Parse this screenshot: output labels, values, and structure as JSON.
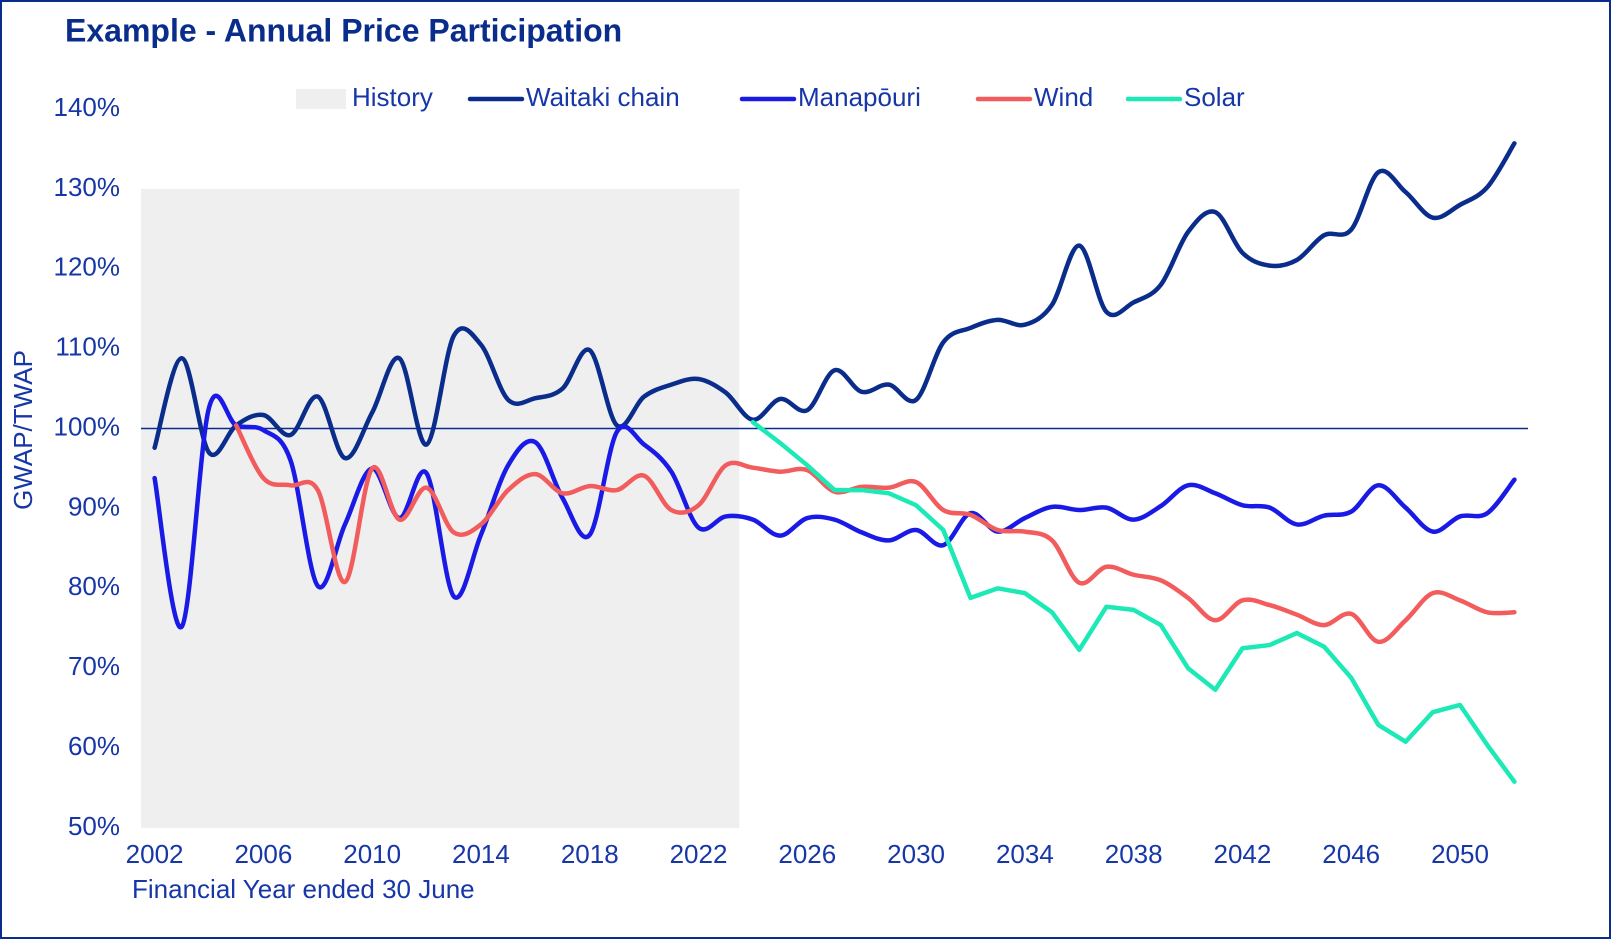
{
  "chart_data": {
    "type": "line",
    "title": "Example - Annual Price Participation",
    "x_label": "Financial Year ended 30 June",
    "y_label": "GWAP/TWAP",
    "history": {
      "name": "History",
      "color": "#efeff0",
      "x": [
        2001.5,
        2023.5
      ],
      "y": [
        50,
        130
      ]
    },
    "reference_line": {
      "value": 100,
      "color": "#0a2d8c"
    },
    "x": [
      2002,
      2003,
      2004,
      2005,
      2006,
      2007,
      2008,
      2009,
      2010,
      2011,
      2012,
      2013,
      2014,
      2015,
      2016,
      2017,
      2018,
      2019,
      2020,
      2021,
      2022,
      2023,
      2024,
      2025,
      2026,
      2027,
      2028,
      2029,
      2030,
      2031,
      2032,
      2033,
      2034,
      2035,
      2036,
      2037,
      2038,
      2039,
      2040,
      2041,
      2042,
      2043,
      2044,
      2045,
      2046,
      2047,
      2048,
      2049,
      2050,
      2051,
      2052
    ],
    "series": [
      {
        "name": "Waitaki chain",
        "color": "#0a2d8c",
        "smooth": true,
        "values": [
          97.6,
          108.8,
          97,
          100.4,
          101.7,
          99.2,
          104,
          96.3,
          102,
          108.8,
          98,
          111.6,
          110.5,
          103.6,
          103.8,
          105,
          109.8,
          100.4,
          104,
          105.5,
          106.2,
          104.5,
          101.1,
          103.7,
          102.3,
          107.3,
          104.6,
          105.5,
          103.6,
          110.8,
          112.6,
          113.6,
          113,
          115.5,
          122.9,
          114.6,
          115.8,
          118,
          124.6,
          127.1,
          122,
          120.4,
          121.1,
          124.2,
          124.9,
          132.1,
          129.6,
          126.4,
          128,
          130.2,
          135.7
        ]
      },
      {
        "name": "Manapōuri",
        "color": "#1a1ae6",
        "smooth": true,
        "values": [
          93.8,
          75.2,
          102.6,
          100.4,
          99.8,
          96,
          80.3,
          88,
          95,
          88.8,
          94.4,
          79,
          86.7,
          95.4,
          98.3,
          91.3,
          86.7,
          99.6,
          98,
          94.6,
          87.6,
          89,
          88.6,
          86.6,
          88.8,
          88.6,
          87,
          86,
          87.3,
          85.4,
          89.4,
          87.1,
          88.8,
          90.2,
          89.8,
          90.1,
          88.6,
          90.3,
          92.9,
          91.9,
          90.4,
          90.1,
          88,
          89.1,
          89.6,
          92.9,
          90.1,
          87.1,
          89,
          89.4,
          93.6
        ]
      },
      {
        "name": "Wind",
        "color": "#f25c5c",
        "smooth": true,
        "values": [
          null,
          null,
          null,
          100.4,
          93.8,
          92.9,
          92.3,
          80.8,
          95,
          88.6,
          92.6,
          87,
          88,
          92.3,
          94.3,
          91.9,
          92.8,
          92.3,
          94.1,
          89.8,
          90.4,
          95.4,
          95.1,
          94.6,
          94.8,
          92.1,
          92.7,
          92.6,
          93.3,
          89.8,
          89.2,
          87.3,
          87.1,
          86,
          80.7,
          82.7,
          81.7,
          81,
          78.8,
          76,
          78.5,
          77.9,
          76.7,
          75.4,
          76.8,
          73.3,
          76,
          79.4,
          78.5,
          77,
          77
        ]
      },
      {
        "name": "Solar",
        "color": "#1de9b6",
        "smooth": false,
        "values": [
          null,
          null,
          null,
          null,
          null,
          null,
          null,
          null,
          null,
          null,
          null,
          null,
          null,
          null,
          null,
          null,
          null,
          null,
          null,
          null,
          null,
          null,
          100.8,
          98.2,
          95.4,
          92.3,
          92.3,
          91.9,
          90.4,
          87.3,
          78.8,
          80,
          79.4,
          77,
          72.3,
          77.7,
          77.3,
          75.4,
          70,
          67.3,
          72.5,
          72.9,
          74.4,
          72.7,
          68.8,
          62.9,
          60.8,
          64.5,
          65.4,
          60.4,
          55.8
        ]
      }
    ],
    "xlim": [
      2001.5,
      2052.5
    ],
    "xticks": [
      2002,
      2006,
      2010,
      2014,
      2018,
      2022,
      2026,
      2030,
      2034,
      2038,
      2042,
      2046,
      2050
    ],
    "ylim": [
      50,
      140
    ],
    "yticks": [
      {
        "value": 50,
        "label": "50%"
      },
      {
        "value": 60,
        "label": "60%"
      },
      {
        "value": 70,
        "label": "70%"
      },
      {
        "value": 80,
        "label": "80%"
      },
      {
        "value": 90,
        "label": "90%"
      },
      {
        "value": 100,
        "label": "100%"
      },
      {
        "value": 110,
        "label": "110%"
      },
      {
        "value": 120,
        "label": "120%"
      },
      {
        "value": 130,
        "label": "130%"
      },
      {
        "value": 140,
        "label": "140%"
      }
    ],
    "legend": "top"
  }
}
